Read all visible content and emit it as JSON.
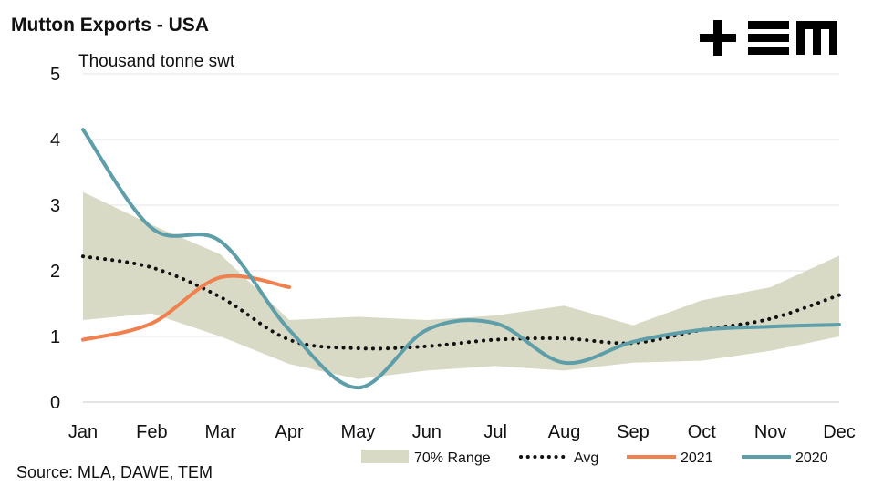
{
  "chart_data": {
    "type": "line",
    "title": "Mutton Exports - USA",
    "ylabel": "Thousand tonne swt",
    "source": "Source: MLA, DAWE, TEM",
    "logo": "+≡M",
    "categories": [
      "Jan",
      "Feb",
      "Mar",
      "Apr",
      "May",
      "Jun",
      "Jul",
      "Aug",
      "Sep",
      "Oct",
      "Nov",
      "Dec"
    ],
    "ylim": [
      0,
      5
    ],
    "yticks": [
      "0",
      "1",
      "2",
      "3",
      "4",
      "5"
    ],
    "grid": true,
    "legend_position": "bottom",
    "range": {
      "name": "70% Range",
      "color": "#d9dac6",
      "low": [
        1.25,
        1.35,
        1.0,
        0.58,
        0.35,
        0.48,
        0.55,
        0.48,
        0.6,
        0.63,
        0.78,
        1.0
      ],
      "high": [
        3.2,
        2.7,
        2.25,
        1.25,
        1.3,
        1.25,
        1.32,
        1.47,
        1.17,
        1.55,
        1.75,
        2.23
      ]
    },
    "series": [
      {
        "name": "Avg",
        "color": "#111111",
        "style": "dotted",
        "values": [
          2.22,
          2.05,
          1.6,
          0.95,
          0.82,
          0.85,
          0.95,
          0.97,
          0.9,
          1.1,
          1.27,
          1.63
        ]
      },
      {
        "name": "2021",
        "color": "#f0804d",
        "style": "solid",
        "values": [
          0.95,
          1.2,
          1.9,
          1.75,
          null,
          null,
          null,
          null,
          null,
          null,
          null,
          null
        ]
      },
      {
        "name": "2020",
        "color": "#5e9ea9",
        "style": "solid",
        "values": [
          4.15,
          2.65,
          2.45,
          1.1,
          0.22,
          1.1,
          1.2,
          0.6,
          0.92,
          1.1,
          1.15,
          1.18
        ]
      }
    ]
  }
}
